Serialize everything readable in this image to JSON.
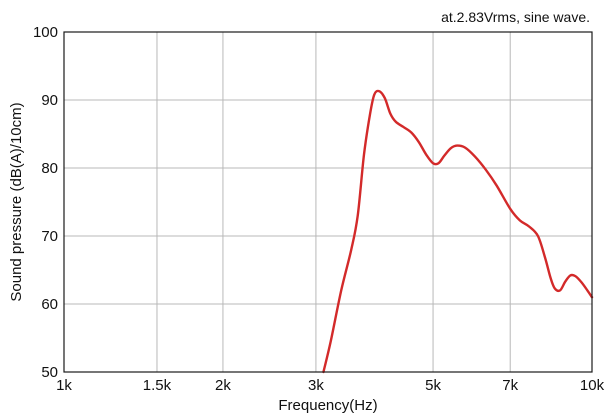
{
  "chart_data": {
    "type": "line",
    "title": "",
    "annotation": "at.2.83Vrms, sine wave.",
    "xlabel": "Frequency(Hz)",
    "ylabel": "Sound pressure (dB(A)/10cm)",
    "x_scale": "log",
    "xlim": [
      1000,
      10000
    ],
    "ylim": [
      50,
      100
    ],
    "grid": true,
    "x_ticks": [
      {
        "value": 1000,
        "label": "1k"
      },
      {
        "value": 1500,
        "label": "1.5k"
      },
      {
        "value": 2000,
        "label": "2k"
      },
      {
        "value": 3000,
        "label": "3k"
      },
      {
        "value": 5000,
        "label": "5k"
      },
      {
        "value": 7000,
        "label": "7k"
      },
      {
        "value": 10000,
        "label": "10k"
      }
    ],
    "y_ticks": [
      {
        "value": 50,
        "label": "50"
      },
      {
        "value": 60,
        "label": "60"
      },
      {
        "value": 70,
        "label": "70"
      },
      {
        "value": 80,
        "label": "80"
      },
      {
        "value": 90,
        "label": "90"
      },
      {
        "value": 100,
        "label": "100"
      }
    ],
    "series": [
      {
        "color": "#d32a2a",
        "points": [
          [
            3100,
            50.0
          ],
          [
            3200,
            54.5
          ],
          [
            3350,
            62.0
          ],
          [
            3500,
            68.0
          ],
          [
            3600,
            73.0
          ],
          [
            3700,
            82.0
          ],
          [
            3800,
            88.0
          ],
          [
            3870,
            90.8
          ],
          [
            3950,
            91.3
          ],
          [
            4050,
            90.3
          ],
          [
            4150,
            88.0
          ],
          [
            4250,
            86.8
          ],
          [
            4400,
            86.0
          ],
          [
            4550,
            85.2
          ],
          [
            4700,
            83.8
          ],
          [
            4850,
            82.0
          ],
          [
            5000,
            80.7
          ],
          [
            5120,
            80.7
          ],
          [
            5250,
            81.8
          ],
          [
            5400,
            82.9
          ],
          [
            5550,
            83.3
          ],
          [
            5750,
            83.0
          ],
          [
            6000,
            81.7
          ],
          [
            6300,
            79.7
          ],
          [
            6600,
            77.4
          ],
          [
            7000,
            74.0
          ],
          [
            7300,
            72.3
          ],
          [
            7600,
            71.4
          ],
          [
            7900,
            70.0
          ],
          [
            8150,
            66.8
          ],
          [
            8350,
            63.8
          ],
          [
            8500,
            62.3
          ],
          [
            8700,
            62.0
          ],
          [
            8900,
            63.3
          ],
          [
            9100,
            64.2
          ],
          [
            9300,
            64.1
          ],
          [
            9550,
            63.2
          ],
          [
            9800,
            62.0
          ],
          [
            10000,
            61.0
          ]
        ]
      }
    ]
  }
}
